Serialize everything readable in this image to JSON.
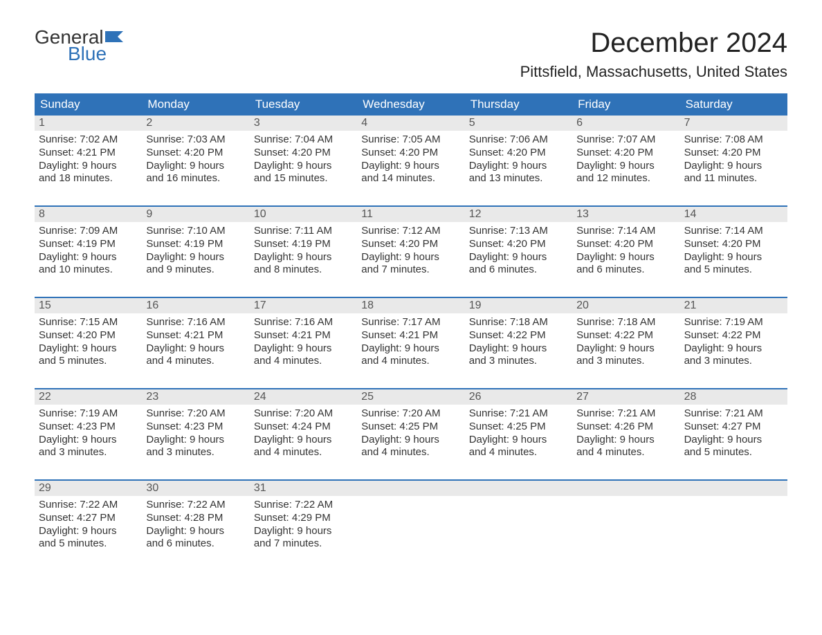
{
  "logo": {
    "text_general": "General",
    "text_blue": "Blue",
    "flag_color": "#2f72b8"
  },
  "title": "December 2024",
  "location": "Pittsfield, Massachusetts, United States",
  "colors": {
    "header_bg": "#2f72b8",
    "header_text": "#ffffff",
    "daynum_bg": "#e9e9e9",
    "week_border": "#2f72b8",
    "body_text": "#333333",
    "page_bg": "#ffffff"
  },
  "fonts": {
    "title_size_pt": 30,
    "location_size_pt": 17,
    "header_size_pt": 13,
    "body_size_pt": 11
  },
  "day_names": [
    "Sunday",
    "Monday",
    "Tuesday",
    "Wednesday",
    "Thursday",
    "Friday",
    "Saturday"
  ],
  "weeks": [
    [
      {
        "n": "1",
        "sunrise": "Sunrise: 7:02 AM",
        "sunset": "Sunset: 4:21 PM",
        "d1": "Daylight: 9 hours",
        "d2": "and 18 minutes."
      },
      {
        "n": "2",
        "sunrise": "Sunrise: 7:03 AM",
        "sunset": "Sunset: 4:20 PM",
        "d1": "Daylight: 9 hours",
        "d2": "and 16 minutes."
      },
      {
        "n": "3",
        "sunrise": "Sunrise: 7:04 AM",
        "sunset": "Sunset: 4:20 PM",
        "d1": "Daylight: 9 hours",
        "d2": "and 15 minutes."
      },
      {
        "n": "4",
        "sunrise": "Sunrise: 7:05 AM",
        "sunset": "Sunset: 4:20 PM",
        "d1": "Daylight: 9 hours",
        "d2": "and 14 minutes."
      },
      {
        "n": "5",
        "sunrise": "Sunrise: 7:06 AM",
        "sunset": "Sunset: 4:20 PM",
        "d1": "Daylight: 9 hours",
        "d2": "and 13 minutes."
      },
      {
        "n": "6",
        "sunrise": "Sunrise: 7:07 AM",
        "sunset": "Sunset: 4:20 PM",
        "d1": "Daylight: 9 hours",
        "d2": "and 12 minutes."
      },
      {
        "n": "7",
        "sunrise": "Sunrise: 7:08 AM",
        "sunset": "Sunset: 4:20 PM",
        "d1": "Daylight: 9 hours",
        "d2": "and 11 minutes."
      }
    ],
    [
      {
        "n": "8",
        "sunrise": "Sunrise: 7:09 AM",
        "sunset": "Sunset: 4:19 PM",
        "d1": "Daylight: 9 hours",
        "d2": "and 10 minutes."
      },
      {
        "n": "9",
        "sunrise": "Sunrise: 7:10 AM",
        "sunset": "Sunset: 4:19 PM",
        "d1": "Daylight: 9 hours",
        "d2": "and 9 minutes."
      },
      {
        "n": "10",
        "sunrise": "Sunrise: 7:11 AM",
        "sunset": "Sunset: 4:19 PM",
        "d1": "Daylight: 9 hours",
        "d2": "and 8 minutes."
      },
      {
        "n": "11",
        "sunrise": "Sunrise: 7:12 AM",
        "sunset": "Sunset: 4:20 PM",
        "d1": "Daylight: 9 hours",
        "d2": "and 7 minutes."
      },
      {
        "n": "12",
        "sunrise": "Sunrise: 7:13 AM",
        "sunset": "Sunset: 4:20 PM",
        "d1": "Daylight: 9 hours",
        "d2": "and 6 minutes."
      },
      {
        "n": "13",
        "sunrise": "Sunrise: 7:14 AM",
        "sunset": "Sunset: 4:20 PM",
        "d1": "Daylight: 9 hours",
        "d2": "and 6 minutes."
      },
      {
        "n": "14",
        "sunrise": "Sunrise: 7:14 AM",
        "sunset": "Sunset: 4:20 PM",
        "d1": "Daylight: 9 hours",
        "d2": "and 5 minutes."
      }
    ],
    [
      {
        "n": "15",
        "sunrise": "Sunrise: 7:15 AM",
        "sunset": "Sunset: 4:20 PM",
        "d1": "Daylight: 9 hours",
        "d2": "and 5 minutes."
      },
      {
        "n": "16",
        "sunrise": "Sunrise: 7:16 AM",
        "sunset": "Sunset: 4:21 PM",
        "d1": "Daylight: 9 hours",
        "d2": "and 4 minutes."
      },
      {
        "n": "17",
        "sunrise": "Sunrise: 7:16 AM",
        "sunset": "Sunset: 4:21 PM",
        "d1": "Daylight: 9 hours",
        "d2": "and 4 minutes."
      },
      {
        "n": "18",
        "sunrise": "Sunrise: 7:17 AM",
        "sunset": "Sunset: 4:21 PM",
        "d1": "Daylight: 9 hours",
        "d2": "and 4 minutes."
      },
      {
        "n": "19",
        "sunrise": "Sunrise: 7:18 AM",
        "sunset": "Sunset: 4:22 PM",
        "d1": "Daylight: 9 hours",
        "d2": "and 3 minutes."
      },
      {
        "n": "20",
        "sunrise": "Sunrise: 7:18 AM",
        "sunset": "Sunset: 4:22 PM",
        "d1": "Daylight: 9 hours",
        "d2": "and 3 minutes."
      },
      {
        "n": "21",
        "sunrise": "Sunrise: 7:19 AM",
        "sunset": "Sunset: 4:22 PM",
        "d1": "Daylight: 9 hours",
        "d2": "and 3 minutes."
      }
    ],
    [
      {
        "n": "22",
        "sunrise": "Sunrise: 7:19 AM",
        "sunset": "Sunset: 4:23 PM",
        "d1": "Daylight: 9 hours",
        "d2": "and 3 minutes."
      },
      {
        "n": "23",
        "sunrise": "Sunrise: 7:20 AM",
        "sunset": "Sunset: 4:23 PM",
        "d1": "Daylight: 9 hours",
        "d2": "and 3 minutes."
      },
      {
        "n": "24",
        "sunrise": "Sunrise: 7:20 AM",
        "sunset": "Sunset: 4:24 PM",
        "d1": "Daylight: 9 hours",
        "d2": "and 4 minutes."
      },
      {
        "n": "25",
        "sunrise": "Sunrise: 7:20 AM",
        "sunset": "Sunset: 4:25 PM",
        "d1": "Daylight: 9 hours",
        "d2": "and 4 minutes."
      },
      {
        "n": "26",
        "sunrise": "Sunrise: 7:21 AM",
        "sunset": "Sunset: 4:25 PM",
        "d1": "Daylight: 9 hours",
        "d2": "and 4 minutes."
      },
      {
        "n": "27",
        "sunrise": "Sunrise: 7:21 AM",
        "sunset": "Sunset: 4:26 PM",
        "d1": "Daylight: 9 hours",
        "d2": "and 4 minutes."
      },
      {
        "n": "28",
        "sunrise": "Sunrise: 7:21 AM",
        "sunset": "Sunset: 4:27 PM",
        "d1": "Daylight: 9 hours",
        "d2": "and 5 minutes."
      }
    ],
    [
      {
        "n": "29",
        "sunrise": "Sunrise: 7:22 AM",
        "sunset": "Sunset: 4:27 PM",
        "d1": "Daylight: 9 hours",
        "d2": "and 5 minutes."
      },
      {
        "n": "30",
        "sunrise": "Sunrise: 7:22 AM",
        "sunset": "Sunset: 4:28 PM",
        "d1": "Daylight: 9 hours",
        "d2": "and 6 minutes."
      },
      {
        "n": "31",
        "sunrise": "Sunrise: 7:22 AM",
        "sunset": "Sunset: 4:29 PM",
        "d1": "Daylight: 9 hours",
        "d2": "and 7 minutes."
      },
      {
        "n": "",
        "sunrise": "",
        "sunset": "",
        "d1": "",
        "d2": ""
      },
      {
        "n": "",
        "sunrise": "",
        "sunset": "",
        "d1": "",
        "d2": ""
      },
      {
        "n": "",
        "sunrise": "",
        "sunset": "",
        "d1": "",
        "d2": ""
      },
      {
        "n": "",
        "sunrise": "",
        "sunset": "",
        "d1": "",
        "d2": ""
      }
    ]
  ]
}
